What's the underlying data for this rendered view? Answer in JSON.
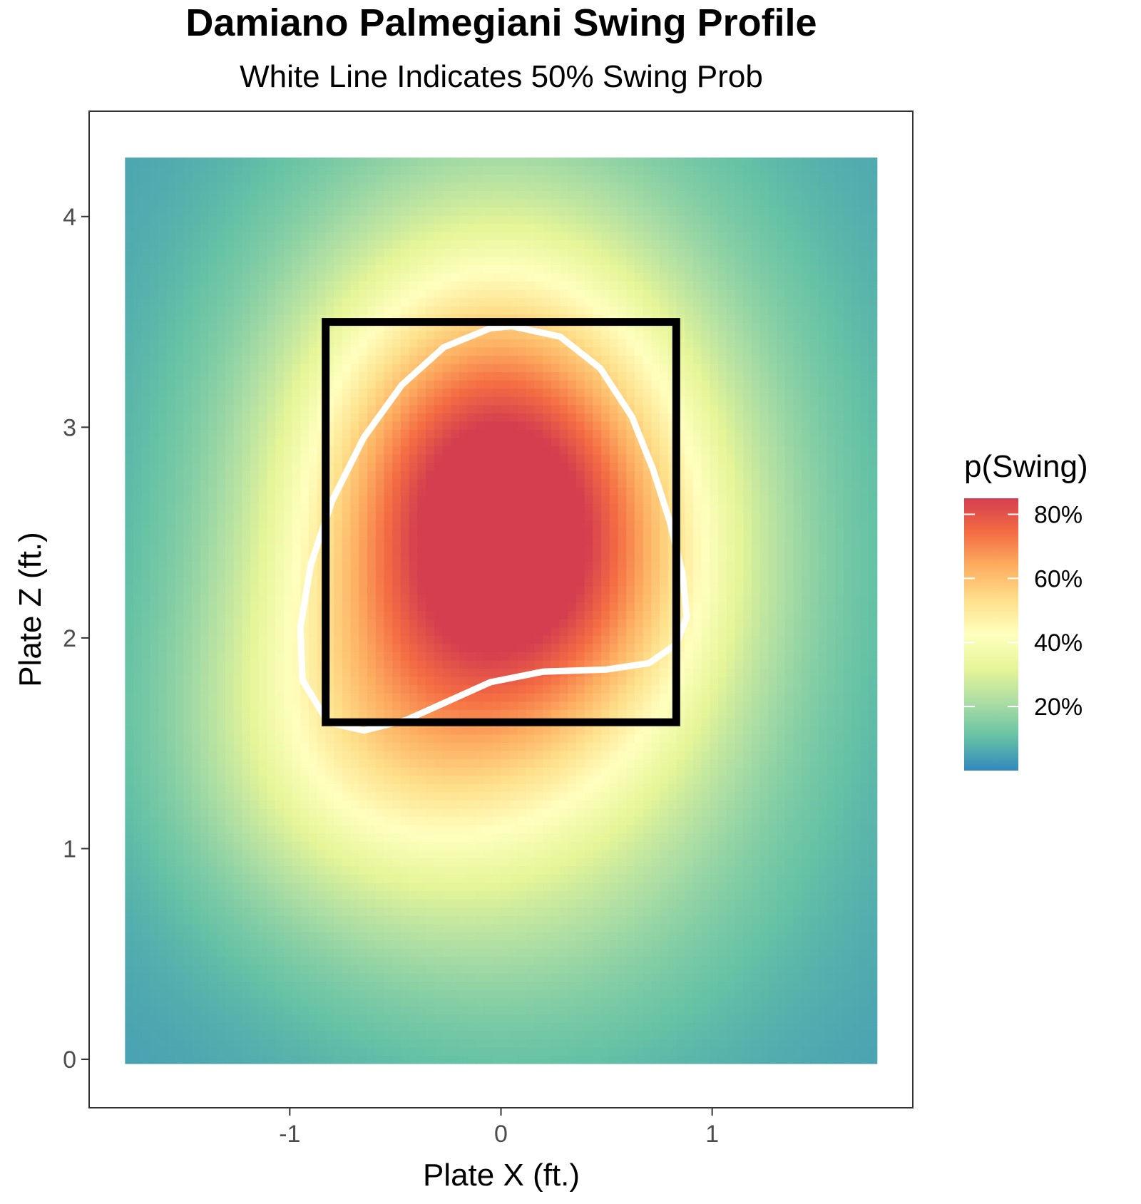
{
  "chart_data": {
    "type": "heatmap",
    "title": "Damiano Palmegiani Swing Profile",
    "subtitle": "White Line Indicates 50% Swing Prob",
    "xlabel": "Plate X (ft.)",
    "ylabel": "Plate Z (ft.)",
    "xlim": [
      -1.95,
      1.95
    ],
    "ylim": [
      -0.23,
      4.5
    ],
    "x_ticks": [
      -1,
      0,
      1
    ],
    "x_tick_labels": [
      "-1",
      "0",
      "1"
    ],
    "y_ticks": [
      0,
      1,
      2,
      3,
      4
    ],
    "y_tick_labels": [
      "0",
      "1",
      "2",
      "3",
      "4"
    ],
    "grid": false,
    "value_range": {
      "x": [
        -1.78,
        1.78
      ],
      "z": [
        -0.02,
        4.28
      ]
    },
    "surface_peak": {
      "x": -0.05,
      "z": 2.65,
      "p_swing": 0.85
    },
    "legend": {
      "title": "p(Swing)",
      "placement": "right",
      "breaks": [
        0.2,
        0.4,
        0.6,
        0.8
      ],
      "labels": [
        "20%",
        "40%",
        "60%",
        "80%"
      ],
      "limits": [
        0.0,
        0.85
      ],
      "colors": [
        "#3288bd",
        "#66c2a5",
        "#abdda4",
        "#e6f598",
        "#ffffbf",
        "#fee08b",
        "#fdae61",
        "#f46d43",
        "#d53e4f"
      ]
    },
    "strike_zone": {
      "x": [
        -0.83,
        0.83
      ],
      "z": [
        1.6,
        3.5
      ],
      "color": "#000000"
    },
    "contour_50": {
      "color": "#ffffff",
      "points": [
        [
          0.05,
          3.48
        ],
        [
          0.28,
          3.43
        ],
        [
          0.47,
          3.28
        ],
        [
          0.62,
          3.05
        ],
        [
          0.72,
          2.8
        ],
        [
          0.8,
          2.55
        ],
        [
          0.86,
          2.3
        ],
        [
          0.88,
          2.1
        ],
        [
          0.83,
          1.97
        ],
        [
          0.7,
          1.88
        ],
        [
          0.5,
          1.85
        ],
        [
          0.2,
          1.84
        ],
        [
          -0.05,
          1.79
        ],
        [
          -0.25,
          1.7
        ],
        [
          -0.45,
          1.61
        ],
        [
          -0.65,
          1.56
        ],
        [
          -0.82,
          1.6
        ],
        [
          -0.94,
          1.8
        ],
        [
          -0.95,
          2.05
        ],
        [
          -0.9,
          2.35
        ],
        [
          -0.8,
          2.65
        ],
        [
          -0.65,
          2.95
        ],
        [
          -0.47,
          3.2
        ],
        [
          -0.27,
          3.38
        ],
        [
          -0.05,
          3.47
        ],
        [
          0.05,
          3.48
        ]
      ]
    }
  }
}
